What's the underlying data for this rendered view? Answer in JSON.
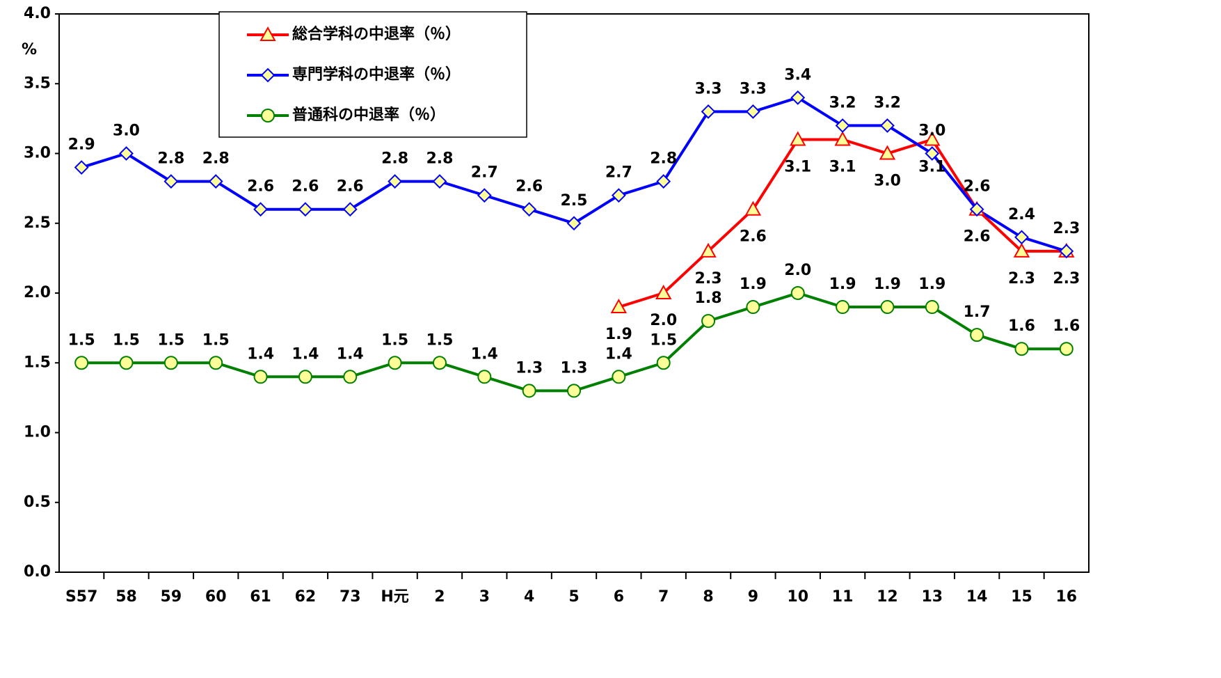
{
  "chart_data": {
    "type": "line",
    "y_label": "%",
    "categories": [
      "S57",
      "58",
      "59",
      "60",
      "61",
      "62",
      "73",
      "H元",
      "2",
      "3",
      "4",
      "5",
      "6",
      "7",
      "8",
      "9",
      "10",
      "11",
      "12",
      "13",
      "14",
      "15",
      "16"
    ],
    "series": [
      {
        "name": "総合学科の中退率（％）",
        "color": "#ff0000",
        "marker": "triangle",
        "label_side": "below",
        "values": [
          null,
          null,
          null,
          null,
          null,
          null,
          null,
          null,
          null,
          null,
          null,
          null,
          1.9,
          2.0,
          2.3,
          2.6,
          3.1,
          3.1,
          3.0,
          3.1,
          2.6,
          2.3,
          2.3
        ],
        "value_labels": [
          null,
          null,
          null,
          null,
          null,
          null,
          null,
          null,
          null,
          null,
          null,
          null,
          "1.9",
          "2.0",
          "2.3",
          "2.6",
          "3.1",
          "3.1",
          "3.0",
          "3.1",
          "2.6",
          "2.3",
          "2.3"
        ]
      },
      {
        "name": "専門学科の中退率（％）",
        "color": "#0000ff",
        "marker": "diamond",
        "label_side": "above",
        "values": [
          2.9,
          3.0,
          2.8,
          2.8,
          2.6,
          2.6,
          2.6,
          2.8,
          2.8,
          2.7,
          2.6,
          2.5,
          2.7,
          2.8,
          3.3,
          3.3,
          3.4,
          3.2,
          3.2,
          3.0,
          2.6,
          2.4,
          2.3
        ],
        "value_labels": [
          "2.9",
          "3.0",
          "2.8",
          "2.8",
          "2.6",
          "2.6",
          "2.6",
          "2.8",
          "2.8",
          "2.7",
          "2.6",
          "2.5",
          "2.7",
          "2.8",
          "3.3",
          "3.3",
          "3.4",
          "3.2",
          "3.2",
          "3.0",
          "2.6",
          "2.4",
          "2.3"
        ]
      },
      {
        "name": "普通科の中退率（％）",
        "color": "#008000",
        "marker": "circle",
        "label_side": "above",
        "values": [
          1.5,
          1.5,
          1.5,
          1.5,
          1.4,
          1.4,
          1.4,
          1.5,
          1.5,
          1.4,
          1.3,
          1.3,
          1.4,
          1.5,
          1.8,
          1.9,
          2.0,
          1.9,
          1.9,
          1.9,
          1.7,
          1.6,
          1.6
        ],
        "value_labels": [
          "1.5",
          "1.5",
          "1.5",
          "1.5",
          "1.4",
          "1.4",
          "1.4",
          "1.5",
          "1.5",
          "1.4",
          "1.3",
          "1.3",
          "1.4",
          "1.5",
          "1.8",
          "1.9",
          "2.0",
          "1.9",
          "1.9",
          "1.9",
          "1.7",
          "1.6",
          "1.6"
        ]
      }
    ],
    "marker_fill": "#ffff99",
    "ylim": [
      0,
      4
    ],
    "yticks": [
      {
        "value": 0,
        "label": "0.0"
      },
      0.5,
      {
        "value": 1,
        "label": "1.0"
      },
      1.5,
      {
        "value": 2,
        "label": "2.0"
      },
      2.5,
      {
        "value": 3,
        "label": "3.0"
      },
      3.5,
      {
        "value": 4,
        "label": "4.0"
      }
    ],
    "legend": "upper left",
    "grid": false
  }
}
